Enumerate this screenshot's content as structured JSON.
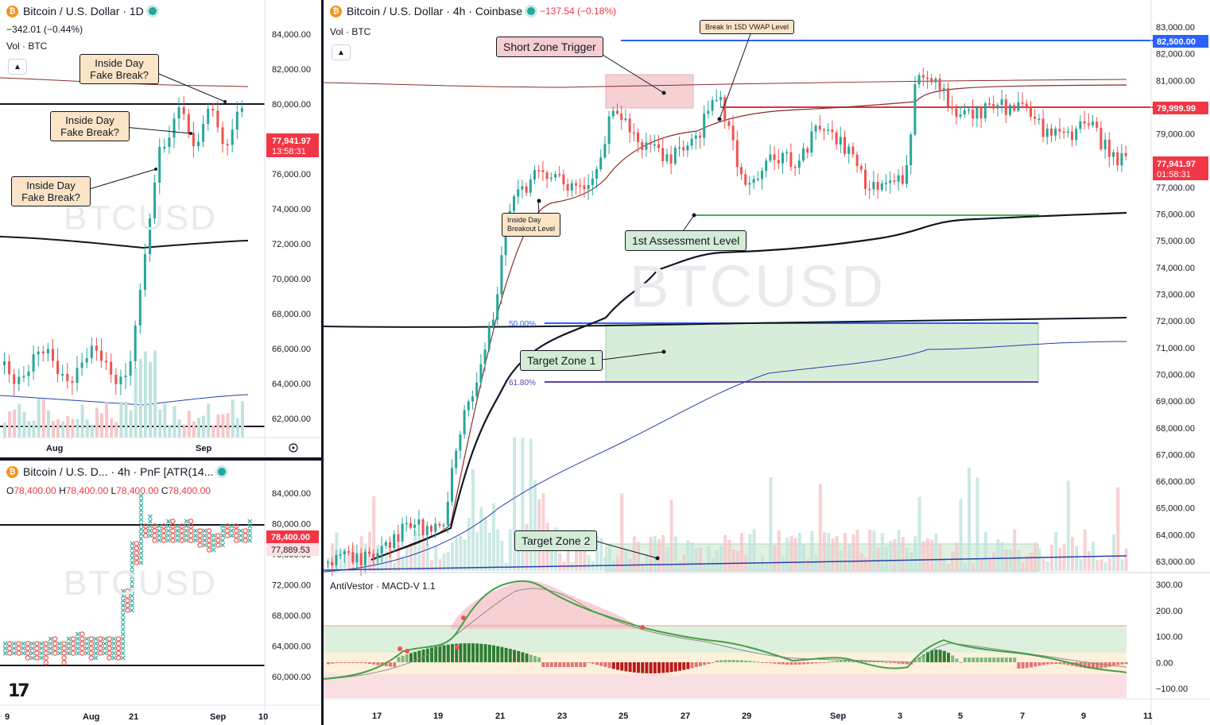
{
  "watermark": "BTCUSD",
  "colors": {
    "up": "#26a69a",
    "down": "#ef5350",
    "accent": "#2962ff",
    "price_tag": "#f23645"
  },
  "daily": {
    "title": "Bitcoin / U.S. Dollar · 1D",
    "change": "−342.01 (−0.44%)",
    "vol_label": "Vol · BTC",
    "y_ticks": [
      "84,000.00",
      "82,000.00",
      "80,000.00",
      "78,000.00",
      "76,000.00",
      "74,000.00",
      "72,000.00",
      "70,000.00",
      "68,000.00",
      "66,000.00",
      "64,000.00",
      "62,000.00"
    ],
    "x_ticks": [
      "Aug",
      "Sep"
    ],
    "last_price": "77,941.97",
    "countdown": "13:58:31",
    "notes": [
      "Inside Day\nFake Break?",
      "Inside Day\nFake Break?",
      "Inside Day\nFake Break?"
    ],
    "settings_icon": "gear-icon"
  },
  "pnf": {
    "title": "Bitcoin / U.S. D... · 4h · PnF [ATR(14...",
    "o_label": "O",
    "o": "78,400.00",
    "h_label": "H",
    "h": "78,400.00",
    "l_label": "L",
    "l": "78,400.00",
    "c_label": "C",
    "c": "78,400.00",
    "y_ticks": [
      "84,000.00",
      "80,000.00",
      "76,000.00",
      "72,000.00",
      "68,000.00",
      "64,000.00",
      "60,000.00"
    ],
    "x_ticks": [
      "9",
      "Aug",
      "21",
      "Sep",
      "10"
    ],
    "price_tag": "78,400.00",
    "price_tag2": "77,889.53"
  },
  "main": {
    "title": "Bitcoin / U.S. Dollar · 4h · Coinbase",
    "change": "−137.54 (−0.18%)",
    "vol_label": "Vol · BTC",
    "y_ticks": [
      "83,000.00",
      "82,000.00",
      "81,000.00",
      "80,000.00",
      "79,000.00",
      "78,000.00",
      "77,000.00",
      "76,000.00",
      "75,000.00",
      "74,000.00",
      "73,000.00",
      "72,000.00",
      "71,000.00",
      "70,000.00",
      "69,000.00",
      "68,000.00",
      "67,000.00",
      "66,000.00",
      "65,000.00",
      "64,000.00",
      "63,000.00"
    ],
    "x_ticks": [
      "17",
      "19",
      "21",
      "23",
      "25",
      "27",
      "29",
      "Sep",
      "3",
      "5",
      "7",
      "9",
      "11"
    ],
    "tag_high": "82,500.00",
    "tag_mid": "79,999.99",
    "last_price": "77,941.97",
    "countdown": "01:58:31",
    "fib_50": "50.00%",
    "fib_618": "61.80%",
    "labels": {
      "short_zone": "Short Zone Trigger",
      "vwap_break": "Break In 15D VWAP Level",
      "inside_day_line1": "Inside Day",
      "inside_day_line2": "Breakout Level",
      "assessment": "1st Assessment Level",
      "target1": "Target Zone 1",
      "target2": "Target Zone 2"
    }
  },
  "macd": {
    "title": "AntiVestor · MACD-V 1.1",
    "y_ticks": [
      "300.00",
      "200.00",
      "100.00",
      "0.00",
      "−100.00"
    ]
  }
}
